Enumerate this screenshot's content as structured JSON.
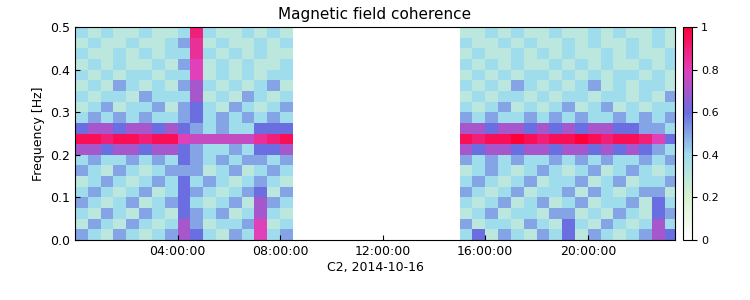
{
  "chart_data": {
    "type": "heatmap",
    "title": "Magnetic field coherence",
    "x_label": "C2, 2014-10-16",
    "y_label": "Frequency [Hz]",
    "xlim": [
      0,
      23.4
    ],
    "xticks": [
      {
        "value": 4,
        "label": "04:00:00"
      },
      {
        "value": 8,
        "label": "08:00:00"
      },
      {
        "value": 12,
        "label": "12:00:00"
      },
      {
        "value": 16,
        "label": "16:00:00"
      },
      {
        "value": 20,
        "label": "20:00:00"
      }
    ],
    "ylim": [
      0,
      0.5
    ],
    "yticks": [
      {
        "value": 0,
        "label": "0.0"
      },
      {
        "value": 0.1,
        "label": "0.1"
      },
      {
        "value": 0.2,
        "label": "0.2"
      },
      {
        "value": 0.3,
        "label": "0.3"
      },
      {
        "value": 0.4,
        "label": "0.4"
      },
      {
        "value": 0.5,
        "label": "0.5"
      }
    ],
    "grid": false,
    "color_range": [
      0,
      1
    ],
    "color_ticks": [
      0,
      0.2,
      0.4,
      0.6,
      0.8,
      1
    ],
    "time_bins": [
      0,
      0.5,
      1,
      1.5,
      2,
      2.5,
      3,
      3.5,
      4,
      4.5,
      5,
      5.5,
      6,
      6.5,
      7,
      7.5,
      8,
      8.5,
      9,
      9.5,
      10,
      10.5,
      11,
      11.5,
      12,
      12.5,
      13,
      13.5,
      14,
      14.5,
      15,
      15.5,
      16,
      16.5,
      17,
      17.5,
      18,
      18.5,
      19,
      19.5,
      20,
      20.5,
      21,
      21.5,
      22,
      22.5,
      23,
      23.5
    ],
    "frequency_bins": [
      0,
      0.025,
      0.05,
      0.075,
      0.1,
      0.125,
      0.15,
      0.175,
      0.2,
      0.225,
      0.25,
      0.275,
      0.3,
      0.325,
      0.35,
      0.375,
      0.4,
      0.425,
      0.45,
      0.475,
      0.5
    ],
    "cells": [
      [
        0.5,
        0.4,
        0.3,
        0.5,
        0.4,
        0.3,
        0.4,
        0.5,
        0.7,
        0.6,
        0.4,
        0.3,
        0.5,
        0.4,
        0.8,
        0.4,
        0.5,
        null,
        null,
        null,
        null,
        null,
        null,
        null,
        null,
        null,
        null,
        null,
        null,
        null,
        0.4,
        0.6,
        0.3,
        0.5,
        0.4,
        0.3,
        0.5,
        0.4,
        0.6,
        0.3,
        0.5,
        0.4,
        0.3,
        0.4,
        0.5,
        0.7,
        0.6
      ],
      [
        0.3,
        0.5,
        0.4,
        0.3,
        0.5,
        0.4,
        0.3,
        0.4,
        0.7,
        0.5,
        0.3,
        0.4,
        0.4,
        0.5,
        0.8,
        0.3,
        0.4,
        null,
        null,
        null,
        null,
        null,
        null,
        null,
        null,
        null,
        null,
        null,
        null,
        null,
        0.5,
        0.3,
        0.4,
        0.4,
        0.3,
        0.5,
        0.4,
        0.3,
        0.6,
        0.4,
        0.3,
        0.5,
        0.4,
        0.3,
        0.4,
        0.7,
        0.4
      ],
      [
        0.4,
        0.3,
        0.5,
        0.4,
        0.3,
        0.5,
        0.4,
        0.3,
        0.6,
        0.5,
        0.4,
        0.5,
        0.3,
        0.4,
        0.7,
        0.4,
        0.3,
        null,
        null,
        null,
        null,
        null,
        null,
        null,
        null,
        null,
        null,
        null,
        null,
        null,
        0.3,
        0.4,
        0.5,
        0.3,
        0.4,
        0.4,
        0.3,
        0.5,
        0.5,
        0.3,
        0.4,
        0.3,
        0.5,
        0.4,
        0.3,
        0.6,
        0.5
      ],
      [
        0.5,
        0.4,
        0.3,
        0.4,
        0.5,
        0.3,
        0.4,
        0.5,
        0.6,
        0.4,
        0.3,
        0.4,
        0.5,
        0.3,
        0.7,
        0.5,
        0.4,
        null,
        null,
        null,
        null,
        null,
        null,
        null,
        null,
        null,
        null,
        null,
        null,
        null,
        0.4,
        0.3,
        0.4,
        0.5,
        0.3,
        0.4,
        0.5,
        0.3,
        0.4,
        0.5,
        0.3,
        0.4,
        0.4,
        0.5,
        0.3,
        0.6,
        0.4
      ],
      [
        0.4,
        0.5,
        0.4,
        0.3,
        0.4,
        0.5,
        0.3,
        0.4,
        0.6,
        0.5,
        0.4,
        0.3,
        0.4,
        0.5,
        0.6,
        0.3,
        0.5,
        null,
        null,
        null,
        null,
        null,
        null,
        null,
        null,
        null,
        null,
        null,
        null,
        null,
        0.5,
        0.4,
        0.3,
        0.4,
        0.5,
        0.3,
        0.4,
        0.4,
        0.5,
        0.3,
        0.5,
        0.4,
        0.3,
        0.4,
        0.5,
        0.5,
        0.3
      ],
      [
        0.3,
        0.4,
        0.5,
        0.4,
        0.3,
        0.4,
        0.5,
        0.4,
        0.6,
        0.4,
        0.5,
        0.4,
        0.3,
        0.4,
        0.5,
        0.4,
        0.3,
        null,
        null,
        null,
        null,
        null,
        null,
        null,
        null,
        null,
        null,
        null,
        null,
        null,
        0.4,
        0.5,
        0.4,
        0.3,
        0.4,
        0.5,
        0.3,
        0.4,
        0.4,
        0.5,
        0.3,
        0.4,
        0.5,
        0.3,
        0.4,
        0.4,
        0.5
      ],
      [
        0.5,
        0.4,
        0.3,
        0.5,
        0.4,
        0.3,
        0.4,
        0.5,
        0.5,
        0.5,
        0.3,
        0.4,
        0.5,
        0.3,
        0.4,
        0.5,
        0.4,
        null,
        null,
        null,
        null,
        null,
        null,
        null,
        null,
        null,
        null,
        null,
        null,
        null,
        0.3,
        0.4,
        0.5,
        0.4,
        0.3,
        0.4,
        0.5,
        0.4,
        0.3,
        0.4,
        0.5,
        0.3,
        0.4,
        0.5,
        0.4,
        0.3,
        0.4
      ],
      [
        0.4,
        0.5,
        0.4,
        0.4,
        0.5,
        0.4,
        0.5,
        0.4,
        0.6,
        0.5,
        0.4,
        0.5,
        0.4,
        0.5,
        0.5,
        0.4,
        0.5,
        null,
        null,
        null,
        null,
        null,
        null,
        null,
        null,
        null,
        null,
        null,
        null,
        null,
        0.5,
        0.4,
        0.5,
        0.4,
        0.5,
        0.4,
        0.4,
        0.5,
        0.4,
        0.5,
        0.4,
        0.5,
        0.4,
        0.4,
        0.5,
        0.4,
        0.5
      ],
      [
        0.7,
        0.7,
        0.6,
        0.7,
        0.7,
        0.6,
        0.7,
        0.7,
        0.6,
        0.5,
        0.4,
        0.4,
        0.5,
        0.4,
        0.6,
        0.6,
        0.7,
        null,
        null,
        null,
        null,
        null,
        null,
        null,
        null,
        null,
        null,
        null,
        null,
        null,
        0.7,
        0.6,
        0.7,
        0.7,
        0.6,
        0.7,
        0.7,
        0.6,
        0.7,
        0.7,
        0.6,
        0.7,
        0.6,
        0.7,
        0.6,
        0.5,
        0.4
      ],
      [
        0.95,
        0.95,
        0.9,
        0.95,
        0.95,
        0.9,
        0.95,
        0.95,
        0.8,
        0.75,
        0.75,
        0.75,
        0.75,
        0.75,
        0.85,
        0.9,
        0.95,
        null,
        null,
        null,
        null,
        null,
        null,
        null,
        null,
        null,
        null,
        null,
        null,
        null,
        0.95,
        0.9,
        0.95,
        0.95,
        1,
        0.95,
        0.9,
        0.95,
        0.95,
        1,
        0.95,
        0.9,
        0.95,
        0.95,
        0.9,
        0.8,
        0.6
      ],
      [
        0.6,
        0.7,
        0.7,
        0.6,
        0.7,
        0.7,
        0.6,
        0.7,
        0.6,
        0.5,
        0.4,
        0.5,
        0.4,
        0.4,
        0.6,
        0.6,
        0.6,
        null,
        null,
        null,
        null,
        null,
        null,
        null,
        null,
        null,
        null,
        null,
        null,
        null,
        0.7,
        0.7,
        0.6,
        0.7,
        0.7,
        0.6,
        0.7,
        0.6,
        0.7,
        0.6,
        0.7,
        0.7,
        0.6,
        0.6,
        0.5,
        0.5,
        0.4
      ],
      [
        0.4,
        0.5,
        0.4,
        0.5,
        0.4,
        0.5,
        0.4,
        0.4,
        0.5,
        0.6,
        0.4,
        0.5,
        0.4,
        0.5,
        0.4,
        0.5,
        0.4,
        null,
        null,
        null,
        null,
        null,
        null,
        null,
        null,
        null,
        null,
        null,
        null,
        null,
        0.5,
        0.4,
        0.5,
        0.4,
        0.4,
        0.5,
        0.4,
        0.5,
        0.4,
        0.5,
        0.4,
        0.4,
        0.5,
        0.4,
        0.5,
        0.4,
        0.5
      ],
      [
        0.3,
        0.4,
        0.5,
        0.3,
        0.4,
        0.4,
        0.5,
        0.3,
        0.5,
        0.6,
        0.4,
        0.3,
        0.5,
        0.4,
        0.3,
        0.4,
        0.5,
        null,
        null,
        null,
        null,
        null,
        null,
        null,
        null,
        null,
        null,
        null,
        null,
        null,
        0.4,
        0.3,
        0.4,
        0.5,
        0.3,
        0.4,
        0.3,
        0.4,
        0.5,
        0.3,
        0.4,
        0.5,
        0.3,
        0.4,
        0.3,
        0.4,
        0.4
      ],
      [
        0.4,
        0.3,
        0.4,
        0.4,
        0.3,
        0.5,
        0.4,
        0.4,
        0.4,
        0.7,
        0.3,
        0.4,
        0.3,
        0.5,
        0.4,
        0.3,
        0.4,
        null,
        null,
        null,
        null,
        null,
        null,
        null,
        null,
        null,
        null,
        null,
        null,
        null,
        0.3,
        0.4,
        0.3,
        0.4,
        0.4,
        0.3,
        0.4,
        0.3,
        0.4,
        0.4,
        0.3,
        0.4,
        0.4,
        0.3,
        0.4,
        0.3,
        0.5
      ],
      [
        0.3,
        0.4,
        0.3,
        0.5,
        0.4,
        0.3,
        0.4,
        0.3,
        0.5,
        0.7,
        0.4,
        0.3,
        0.4,
        0.3,
        0.4,
        0.5,
        0.3,
        null,
        null,
        null,
        null,
        null,
        null,
        null,
        null,
        null,
        null,
        null,
        null,
        null,
        0.4,
        0.3,
        0.4,
        0.3,
        0.5,
        0.4,
        0.3,
        0.4,
        0.3,
        0.4,
        0.5,
        0.3,
        0.4,
        0.3,
        0.4,
        0.4,
        0.3
      ],
      [
        0.4,
        0.3,
        0.4,
        0.3,
        0.4,
        0.4,
        0.3,
        0.4,
        0.4,
        0.8,
        0.3,
        0.4,
        0.3,
        0.4,
        0.3,
        0.4,
        0.4,
        null,
        null,
        null,
        null,
        null,
        null,
        null,
        null,
        null,
        null,
        null,
        null,
        null,
        0.3,
        0.4,
        0.3,
        0.4,
        0.3,
        0.4,
        0.4,
        0.3,
        0.4,
        0.3,
        0.4,
        0.3,
        0.4,
        0.4,
        0.3,
        0.4,
        0.3
      ],
      [
        0.3,
        0.4,
        0.3,
        0.4,
        0.3,
        0.3,
        0.4,
        0.3,
        0.5,
        0.8,
        0.3,
        0.4,
        0.3,
        0.4,
        0.3,
        0.3,
        0.4,
        null,
        null,
        null,
        null,
        null,
        null,
        null,
        null,
        null,
        null,
        null,
        null,
        null,
        0.4,
        0.3,
        0.4,
        0.3,
        0.4,
        0.3,
        0.3,
        0.4,
        0.3,
        0.4,
        0.3,
        0.4,
        0.3,
        0.3,
        0.4,
        0.3,
        0.4
      ],
      [
        0.4,
        0.3,
        0.3,
        0.4,
        0.3,
        0.4,
        0.3,
        0.4,
        0.4,
        0.85,
        0.4,
        0.3,
        0.4,
        0.3,
        0.4,
        0.3,
        0.3,
        null,
        null,
        null,
        null,
        null,
        null,
        null,
        null,
        null,
        null,
        null,
        null,
        null,
        0.3,
        0.4,
        0.3,
        0.3,
        0.4,
        0.3,
        0.4,
        0.3,
        0.4,
        0.3,
        0.3,
        0.4,
        0.3,
        0.4,
        0.3,
        0.3,
        0.4
      ],
      [
        0.3,
        0.4,
        0.3,
        0.3,
        0.4,
        0.3,
        0.3,
        0.4,
        0.5,
        0.85,
        0.3,
        0.4,
        0.3,
        0.3,
        0.4,
        0.3,
        0.4,
        null,
        null,
        null,
        null,
        null,
        null,
        null,
        null,
        null,
        null,
        null,
        null,
        null,
        0.4,
        0.3,
        0.3,
        0.4,
        0.3,
        0.4,
        0.3,
        0.3,
        0.4,
        0.3,
        0.4,
        0.3,
        0.3,
        0.4,
        0.3,
        0.4,
        0.3
      ],
      [
        0.4,
        0.3,
        0.4,
        0.3,
        0.3,
        0.4,
        0.3,
        0.3,
        0.4,
        0.9,
        0.4,
        0.3,
        0.3,
        0.4,
        0.3,
        0.4,
        0.3,
        null,
        null,
        null,
        null,
        null,
        null,
        null,
        null,
        null,
        null,
        null,
        null,
        null,
        0.3,
        0.3,
        0.4,
        0.3,
        0.4,
        0.3,
        0.3,
        0.4,
        0.3,
        0.3,
        0.4,
        0.3,
        0.4,
        0.3,
        0.3,
        0.4,
        0.3
      ]
    ]
  }
}
